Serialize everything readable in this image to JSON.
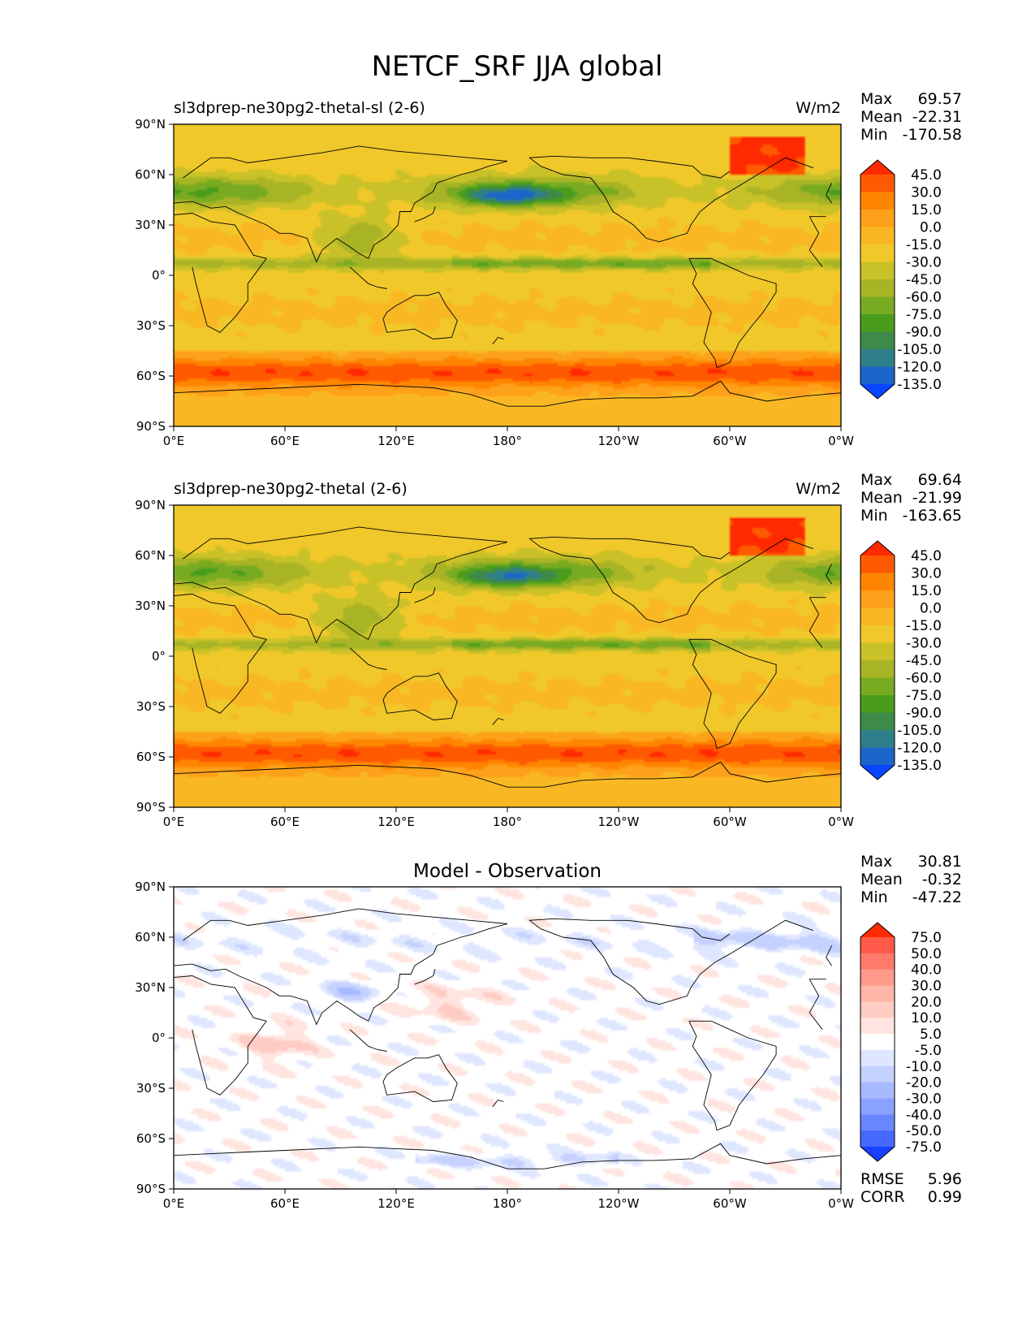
{
  "figure": {
    "title": "NETCF_SRF JJA global"
  },
  "map": {
    "lat_ticks": [
      "90°N",
      "60°N",
      "30°N",
      "0°",
      "30°S",
      "60°S",
      "90°S"
    ],
    "lon_ticks": [
      "0°E",
      "60°E",
      "120°E",
      "180°",
      "120°W",
      "60°W",
      "0°W"
    ]
  },
  "chart_data": [
    {
      "type": "heatmap",
      "title": "sl3dprep-ne30pg2-thetal-sl (2-6)",
      "units": "W/m2",
      "stats": {
        "max_label": "Max",
        "max": "69.57",
        "mean_label": "Mean",
        "mean": "-22.31",
        "min_label": "Min",
        "min": "-170.58"
      },
      "colorbar": {
        "levels": [
          "45.0",
          "30.0",
          "15.0",
          "0.0",
          "-15.0",
          "-30.0",
          "-45.0",
          "-60.0",
          "-75.0",
          "-90.0",
          "-105.0",
          "-120.0",
          "-135.0"
        ],
        "colors": [
          "#ff2a00",
          "#ff5a00",
          "#ff8500",
          "#fda01a",
          "#f9b823",
          "#f0c82a",
          "#c9c128",
          "#a8b425",
          "#78ab22",
          "#4a9d1c",
          "#3e8a4a",
          "#2f7f8a",
          "#1b66c8",
          "#0a45ff"
        ]
      },
      "xlim": [
        0,
        360
      ],
      "ylim": [
        -90,
        90
      ]
    },
    {
      "type": "heatmap",
      "title": "sl3dprep-ne30pg2-thetal (2-6)",
      "units": "W/m2",
      "stats": {
        "max_label": "Max",
        "max": "69.64",
        "mean_label": "Mean",
        "mean": "-21.99",
        "min_label": "Min",
        "min": "-163.65"
      },
      "colorbar": {
        "levels": [
          "45.0",
          "30.0",
          "15.0",
          "0.0",
          "-15.0",
          "-30.0",
          "-45.0",
          "-60.0",
          "-75.0",
          "-90.0",
          "-105.0",
          "-120.0",
          "-135.0"
        ],
        "colors": [
          "#ff2a00",
          "#ff5a00",
          "#ff8500",
          "#fda01a",
          "#f9b823",
          "#f0c82a",
          "#c9c128",
          "#a8b425",
          "#78ab22",
          "#4a9d1c",
          "#3e8a4a",
          "#2f7f8a",
          "#1b66c8",
          "#0a45ff"
        ]
      },
      "xlim": [
        0,
        360
      ],
      "ylim": [
        -90,
        90
      ]
    },
    {
      "type": "heatmap",
      "title": "Model - Observation",
      "units": "",
      "stats": {
        "max_label": "Max",
        "max": "30.81",
        "mean_label": "Mean",
        "mean": "-0.32",
        "min_label": "Min",
        "min": "-47.22"
      },
      "colorbar": {
        "levels": [
          "75.0",
          "50.0",
          "40.0",
          "30.0",
          "20.0",
          "10.0",
          "5.0",
          "-5.0",
          "-10.0",
          "-20.0",
          "-30.0",
          "-40.0",
          "-50.0",
          "-75.0"
        ],
        "colors": [
          "#ff2a00",
          "#ff5a4a",
          "#ff7a6a",
          "#ff9a8a",
          "#ffb5a8",
          "#ffccc4",
          "#ffe4e0",
          "#ffffff",
          "#dfe6ff",
          "#c5d1ff",
          "#a8baff",
          "#8aa2ff",
          "#6a86ff",
          "#4768ff",
          "#1a40ff"
        ]
      },
      "metrics": {
        "rmse_label": "RMSE",
        "rmse": "5.96",
        "corr_label": "CORR",
        "corr": "0.99"
      },
      "xlim": [
        0,
        360
      ],
      "ylim": [
        -90,
        90
      ]
    }
  ]
}
